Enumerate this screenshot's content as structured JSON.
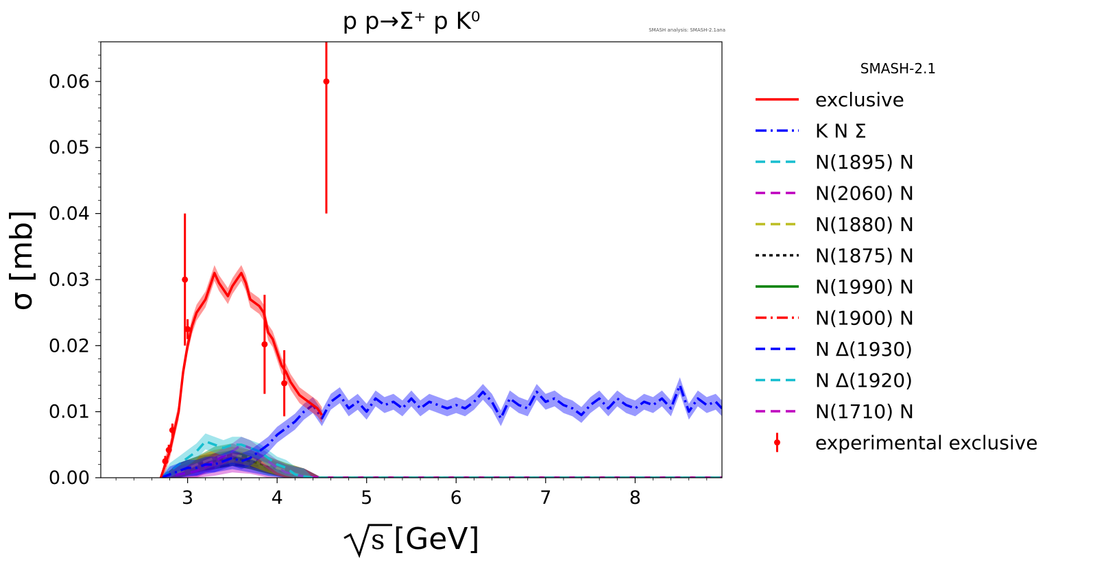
{
  "chart_data": {
    "type": "line",
    "title": "p p→Σ⁺ p K⁰",
    "annotation": "SMASH analysis: SMASH-2.1ana",
    "xlabel": "[GeV]",
    "xlabel_symbol": "s",
    "ylabel": "σ [mb]",
    "xlim": [
      2.03,
      8.97
    ],
    "ylim": [
      0.0,
      0.066
    ],
    "xticks": [
      3,
      4,
      5,
      6,
      7,
      8
    ],
    "xtick_labels": [
      "3",
      "4",
      "5",
      "6",
      "7",
      "8"
    ],
    "yticks": [
      0.0,
      0.01,
      0.02,
      0.03,
      0.04,
      0.05,
      0.06
    ],
    "ytick_labels": [
      "0.00",
      "0.01",
      "0.02",
      "0.03",
      "0.04",
      "0.05",
      "0.06"
    ],
    "legend_title": "SMASH-2.1",
    "legend_position": "outside right",
    "series": [
      {
        "name": "exclusive",
        "color": "#ff0000",
        "style": "solid",
        "x": [
          2.7,
          2.75,
          2.8,
          2.85,
          2.9,
          2.95,
          3.0,
          3.05,
          3.1,
          3.15,
          3.2,
          3.25,
          3.3,
          3.35,
          3.4,
          3.45,
          3.5,
          3.55,
          3.6,
          3.65,
          3.7,
          3.75,
          3.8,
          3.85,
          3.9,
          3.95,
          4.0,
          4.05,
          4.1,
          4.15,
          4.2,
          4.25,
          4.3,
          4.35,
          4.4,
          4.45,
          4.5
        ],
        "values": [
          0.0,
          0.002,
          0.004,
          0.007,
          0.01,
          0.016,
          0.02,
          0.023,
          0.025,
          0.026,
          0.027,
          0.029,
          0.031,
          0.0295,
          0.0285,
          0.0275,
          0.029,
          0.03,
          0.031,
          0.0295,
          0.027,
          0.0265,
          0.026,
          0.025,
          0.022,
          0.021,
          0.019,
          0.017,
          0.016,
          0.0145,
          0.0135,
          0.0125,
          0.012,
          0.0115,
          0.011,
          0.0105,
          0.0095
        ]
      },
      {
        "name": "K N Σ",
        "color": "#0000ff",
        "style": "dashdot",
        "x": [
          2.7,
          2.8,
          2.9,
          3.0,
          3.1,
          3.2,
          3.3,
          3.4,
          3.5,
          3.6,
          3.7,
          3.8,
          3.9,
          4.0,
          4.1,
          4.2,
          4.3,
          4.4,
          4.5,
          4.6,
          4.7,
          4.8,
          4.9,
          5.0,
          5.1,
          5.2,
          5.3,
          5.4,
          5.5,
          5.6,
          5.7,
          5.8,
          5.9,
          6.0,
          6.1,
          6.2,
          6.3,
          6.4,
          6.5,
          6.6,
          6.7,
          6.8,
          6.9,
          7.0,
          7.1,
          7.2,
          7.3,
          7.4,
          7.5,
          7.6,
          7.7,
          7.8,
          7.9,
          8.0,
          8.1,
          8.2,
          8.3,
          8.4,
          8.5,
          8.6,
          8.7,
          8.8,
          8.9,
          8.97
        ],
        "values": [
          0.0,
          0.0005,
          0.001,
          0.0015,
          0.0015,
          0.002,
          0.002,
          0.0025,
          0.003,
          0.0025,
          0.003,
          0.004,
          0.005,
          0.0065,
          0.0075,
          0.0085,
          0.01,
          0.011,
          0.009,
          0.0115,
          0.0125,
          0.0105,
          0.0115,
          0.01,
          0.012,
          0.011,
          0.0115,
          0.0105,
          0.012,
          0.0105,
          0.0115,
          0.011,
          0.0105,
          0.011,
          0.0105,
          0.0115,
          0.013,
          0.0115,
          0.009,
          0.012,
          0.011,
          0.0105,
          0.013,
          0.0115,
          0.012,
          0.011,
          0.0105,
          0.0095,
          0.011,
          0.012,
          0.0105,
          0.012,
          0.011,
          0.0105,
          0.0115,
          0.011,
          0.012,
          0.0105,
          0.014,
          0.01,
          0.012,
          0.011,
          0.0115,
          0.0105
        ]
      },
      {
        "name": "N(1895) N",
        "color": "#17becf",
        "style": "dashed",
        "x": [
          2.7,
          2.8,
          2.9,
          3.0,
          3.1,
          3.2,
          3.3,
          3.4,
          3.5,
          3.6,
          3.7,
          3.8,
          3.9,
          4.0,
          4.1,
          4.2,
          4.3,
          4.4,
          4.5,
          5.0,
          6.0,
          7.0,
          8.0,
          8.97
        ],
        "values": [
          0.0,
          0.001,
          0.002,
          0.003,
          0.004,
          0.0055,
          0.005,
          0.0045,
          0.005,
          0.005,
          0.0045,
          0.004,
          0.003,
          0.002,
          0.0015,
          0.0005,
          0.0002,
          0.0,
          0.0,
          0.0,
          0.0,
          0.0,
          0.0,
          0.0
        ]
      },
      {
        "name": "N(2060) N",
        "color": "#bf00bf",
        "style": "dashed",
        "x": [
          2.7,
          2.9,
          3.1,
          3.3,
          3.5,
          3.6,
          3.7,
          3.8,
          3.9,
          4.0,
          4.1,
          4.3,
          4.5,
          6.0,
          8.97
        ],
        "values": [
          0.0,
          0.0005,
          0.001,
          0.0025,
          0.004,
          0.005,
          0.0045,
          0.0035,
          0.0025,
          0.0015,
          0.0008,
          0.0002,
          0.0,
          0.0,
          0.0
        ]
      },
      {
        "name": "N(1880) N",
        "color": "#bcbd22",
        "style": "dashed",
        "x": [
          2.7,
          2.9,
          3.1,
          3.3,
          3.5,
          3.7,
          3.9,
          4.1,
          4.3,
          4.5,
          6.0,
          8.97
        ],
        "values": [
          0.0,
          0.0008,
          0.002,
          0.003,
          0.0035,
          0.003,
          0.002,
          0.001,
          0.0002,
          0.0,
          0.0,
          0.0
        ]
      },
      {
        "name": "N(1875) N",
        "color": "#000000",
        "style": "dotted",
        "x": [
          2.7,
          2.9,
          3.1,
          3.3,
          3.5,
          3.7,
          3.9,
          4.1,
          4.3,
          4.5,
          6.0,
          8.97
        ],
        "values": [
          0.0,
          0.001,
          0.002,
          0.0025,
          0.003,
          0.0025,
          0.0018,
          0.0008,
          0.0002,
          0.0,
          0.0,
          0.0
        ]
      },
      {
        "name": "N(1990) N",
        "color": "#008000",
        "style": "solid",
        "x": [
          2.7,
          2.9,
          3.1,
          3.3,
          3.5,
          3.6,
          3.7,
          3.9,
          4.1,
          4.3,
          4.5,
          6.0,
          8.97
        ],
        "values": [
          0.0,
          0.001,
          0.002,
          0.0035,
          0.004,
          0.0035,
          0.003,
          0.002,
          0.001,
          0.0002,
          0.0,
          0.0,
          0.0
        ]
      },
      {
        "name": "N(1900) N",
        "color": "#ff0000",
        "style": "dashdot",
        "x": [
          2.7,
          2.9,
          3.1,
          3.3,
          3.5,
          3.7,
          3.9,
          4.1,
          4.3,
          4.5,
          6.0,
          8.97
        ],
        "values": [
          0.0,
          0.001,
          0.002,
          0.003,
          0.0035,
          0.003,
          0.002,
          0.001,
          0.0002,
          0.0,
          0.0,
          0.0
        ]
      },
      {
        "name": "N Δ(1930)",
        "color": "#0000ff",
        "style": "dashed",
        "x": [
          2.7,
          2.9,
          3.1,
          3.3,
          3.5,
          3.7,
          3.9,
          4.1,
          4.3,
          4.5,
          6.0,
          8.97
        ],
        "values": [
          0.0,
          0.0005,
          0.0015,
          0.002,
          0.0025,
          0.002,
          0.0015,
          0.0008,
          0.0002,
          0.0,
          0.0,
          0.0
        ]
      },
      {
        "name": "N Δ(1920)",
        "color": "#17becf",
        "style": "dashed",
        "x": [
          2.7,
          2.9,
          3.1,
          3.3,
          3.5,
          3.7,
          3.9,
          4.1,
          4.3,
          4.5,
          6.0,
          8.97
        ],
        "values": [
          0.0,
          0.0008,
          0.0015,
          0.0025,
          0.003,
          0.0025,
          0.0015,
          0.0008,
          0.0002,
          0.0,
          0.0,
          0.0
        ]
      },
      {
        "name": "N(1710) N",
        "color": "#bf00bf",
        "style": "dashed",
        "x": [
          2.7,
          2.9,
          3.1,
          3.3,
          3.5,
          3.7,
          3.9,
          4.1,
          4.3,
          4.5,
          6.0,
          8.97
        ],
        "values": [
          0.0,
          0.0005,
          0.001,
          0.0015,
          0.002,
          0.0018,
          0.0012,
          0.0006,
          0.0001,
          0.0,
          0.0,
          0.0
        ]
      }
    ],
    "experimental": {
      "name": "experimental exclusive",
      "color": "#ff0000",
      "x": [
        2.75,
        2.79,
        2.83,
        2.97,
        3.0,
        3.86,
        4.08,
        4.55
      ],
      "values": [
        0.0025,
        0.0042,
        0.0072,
        0.03,
        0.0225,
        0.0202,
        0.0143,
        0.06
      ],
      "errors": [
        0.0008,
        0.0008,
        0.001,
        0.01,
        0.0015,
        0.0075,
        0.005,
        0.02
      ]
    }
  }
}
